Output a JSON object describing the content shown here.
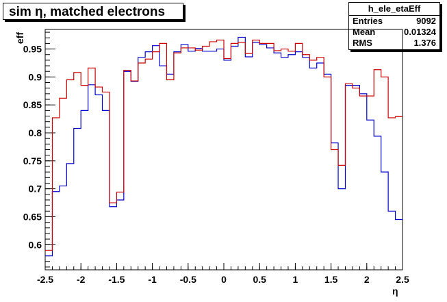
{
  "title": "sim η, matched electrons",
  "stats": {
    "name": "h_ele_etaEff",
    "entries_label": "Entries",
    "entries_value": "9092",
    "mean_label": "Mean",
    "mean_value": "0.01324",
    "rms_label": "RMS",
    "rms_value": "1.376"
  },
  "chart_data": {
    "type": "line",
    "title": "sim η, matched electrons",
    "xlabel": "η",
    "ylabel": "eff",
    "xlim": [
      -2.5,
      2.5
    ],
    "ylim": [
      0.555,
      0.985
    ],
    "bin_edges": [
      -2.5,
      2.5,
      50
    ],
    "x_ticks": [
      -2.5,
      -2,
      -1.5,
      -1,
      -0.5,
      0,
      0.5,
      1,
      1.5,
      2,
      2.5
    ],
    "x_tick_labels": [
      "-2.5",
      "-2",
      "-1.5",
      "-1",
      "-0.5",
      "0",
      "0.5",
      "1",
      "1.5",
      "2",
      "2.5"
    ],
    "y_ticks": [
      0.6,
      0.65,
      0.7,
      0.75,
      0.8,
      0.85,
      0.9,
      0.95
    ],
    "y_tick_labels": [
      "0.6",
      "0.65",
      "0.7",
      "0.75",
      "0.8",
      "0.85",
      "0.9",
      "0.95"
    ],
    "grid": false,
    "series": [
      {
        "color": "#0000cc",
        "values": [
          0.58,
          0.695,
          0.705,
          0.745,
          0.808,
          0.84,
          0.886,
          0.868,
          0.84,
          0.668,
          0.68,
          0.91,
          0.892,
          0.935,
          0.945,
          0.956,
          0.92,
          0.905,
          0.945,
          0.958,
          0.946,
          0.951,
          0.946,
          0.946,
          0.95,
          0.93,
          0.955,
          0.971,
          0.936,
          0.962,
          0.958,
          0.952,
          0.943,
          0.935,
          0.94,
          0.945,
          0.935,
          0.916,
          0.925,
          0.905,
          0.782,
          0.7,
          0.885,
          0.885,
          0.87,
          0.823,
          0.794,
          0.73,
          0.66,
          0.645
        ]
      },
      {
        "color": "#cc0000",
        "values": [
          0.59,
          0.827,
          0.862,
          0.895,
          0.908,
          0.885,
          0.916,
          0.882,
          0.873,
          0.675,
          0.694,
          0.912,
          0.893,
          0.925,
          0.932,
          0.945,
          0.96,
          0.895,
          0.943,
          0.952,
          0.952,
          0.948,
          0.955,
          0.963,
          0.966,
          0.933,
          0.96,
          0.962,
          0.942,
          0.966,
          0.96,
          0.96,
          0.947,
          0.95,
          0.946,
          0.96,
          0.94,
          0.93,
          0.935,
          0.9,
          0.77,
          0.742,
          0.888,
          0.88,
          0.866,
          0.866,
          0.913,
          0.9,
          0.827,
          0.829
        ]
      }
    ]
  }
}
